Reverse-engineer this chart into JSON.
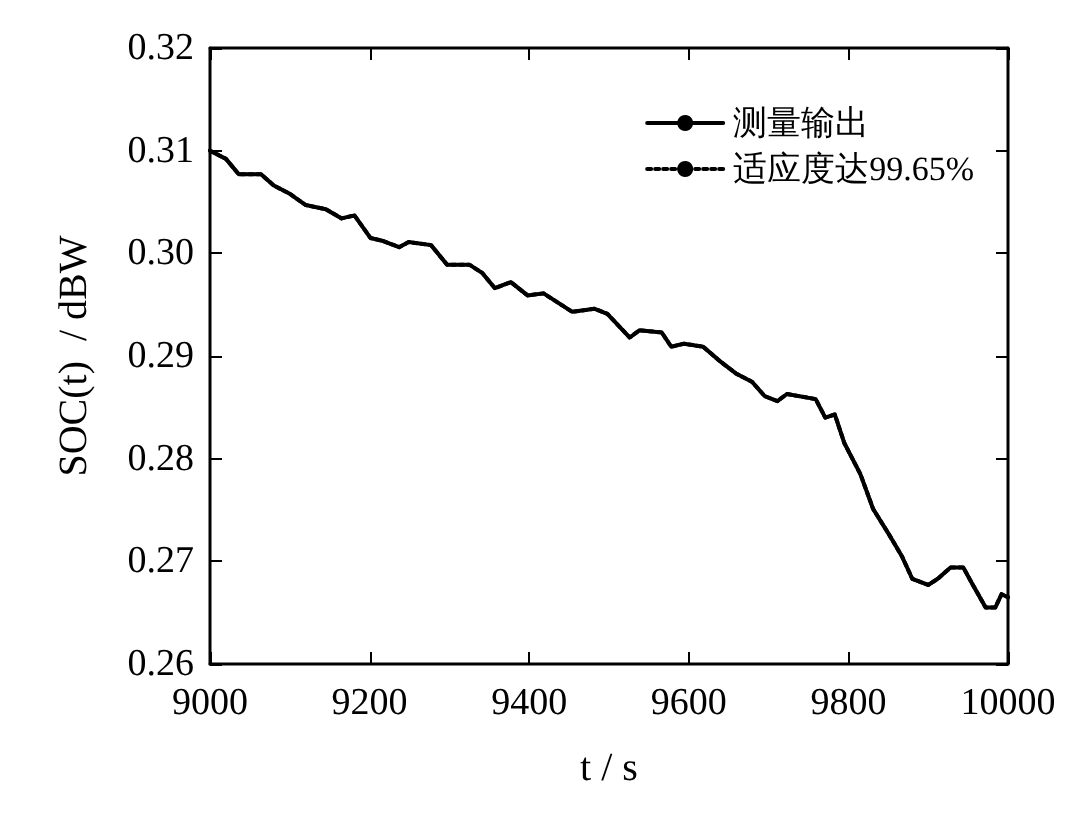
{
  "chart_data": {
    "type": "line",
    "xlabel": "t / s",
    "ylabel": "SOC(t)  / dBW",
    "xlim": [
      9000,
      10000
    ],
    "xticks": [
      9000,
      9200,
      9400,
      9600,
      9800,
      10000
    ],
    "ylim": [
      0.26,
      0.32
    ],
    "yticks": [
      {
        "value": 0.26,
        "label": "0.26"
      },
      {
        "value": 0.27,
        "label": "0.27"
      },
      {
        "value": 0.28,
        "label": "0.28"
      },
      {
        "value": 0.29,
        "label": "0.29"
      },
      {
        "value": 0.3,
        "label": "0.30"
      },
      {
        "value": 0.31,
        "label": "0.31"
      },
      {
        "value": 0.32,
        "label": "0.32"
      }
    ],
    "grid": false,
    "legend": "top right",
    "marker": "none",
    "series": [
      {
        "name": "测量输出",
        "color": "#000000",
        "line_style": "solid",
        "x": [
          9000,
          9020,
          9036,
          9064,
          9080,
          9100,
          9120,
          9145,
          9165,
          9181,
          9201,
          9217,
          9237,
          9249,
          9277,
          9297,
          9325,
          9341,
          9357,
          9377,
          9398,
          9418,
          9454,
          9482,
          9498,
          9526,
          9538,
          9566,
          9578,
          9594,
          9618,
          9639,
          9659,
          9679,
          9695,
          9711,
          9723,
          9759,
          9771,
          9783,
          9795,
          9815,
          9831,
          9851,
          9867,
          9880,
          9900,
          9912,
          9928,
          9944,
          9956,
          9972,
          9984,
          9992,
          10000
        ],
        "values": [
          0.31,
          0.3092,
          0.3077,
          0.3077,
          0.3066,
          0.3058,
          0.3047,
          0.3043,
          0.3034,
          0.3037,
          0.3015,
          0.3012,
          0.3006,
          0.3011,
          0.3008,
          0.2989,
          0.2989,
          0.2981,
          0.2966,
          0.2972,
          0.2959,
          0.2961,
          0.2943,
          0.2946,
          0.2941,
          0.2918,
          0.2925,
          0.2923,
          0.2909,
          0.2912,
          0.2909,
          0.2895,
          0.2883,
          0.2875,
          0.2861,
          0.2856,
          0.2863,
          0.2858,
          0.284,
          0.2843,
          0.2815,
          0.2785,
          0.2751,
          0.2726,
          0.2705,
          0.2683,
          0.2677,
          0.2683,
          0.2694,
          0.2694,
          0.2677,
          0.2655,
          0.2655,
          0.2668,
          0.2665
        ]
      },
      {
        "name": "适应度达99.65%",
        "color": "#000000",
        "line_style": "dotted",
        "x": [
          9000,
          9020,
          9036,
          9064,
          9080,
          9100,
          9120,
          9145,
          9165,
          9181,
          9201,
          9217,
          9237,
          9249,
          9277,
          9297,
          9325,
          9341,
          9357,
          9377,
          9398,
          9418,
          9454,
          9482,
          9498,
          9526,
          9538,
          9566,
          9578,
          9594,
          9618,
          9639,
          9659,
          9679,
          9695,
          9711,
          9723,
          9759,
          9771,
          9783,
          9795,
          9815,
          9831,
          9851,
          9867,
          9880,
          9900,
          9912,
          9928,
          9944,
          9956,
          9972,
          9984,
          9992,
          10000
        ],
        "values": [
          0.31,
          0.3092,
          0.3077,
          0.3077,
          0.3066,
          0.3058,
          0.3047,
          0.3043,
          0.3034,
          0.3037,
          0.3015,
          0.3012,
          0.3006,
          0.3011,
          0.3008,
          0.2989,
          0.2989,
          0.2981,
          0.2966,
          0.2972,
          0.2959,
          0.2961,
          0.2943,
          0.2946,
          0.2941,
          0.2918,
          0.2925,
          0.2923,
          0.2909,
          0.2912,
          0.2909,
          0.2895,
          0.2883,
          0.2875,
          0.2861,
          0.2856,
          0.2863,
          0.2858,
          0.284,
          0.2843,
          0.2815,
          0.2785,
          0.2751,
          0.2726,
          0.2705,
          0.2683,
          0.2677,
          0.2683,
          0.2694,
          0.2694,
          0.2677,
          0.2655,
          0.2655,
          0.2668,
          0.2665
        ]
      }
    ]
  }
}
